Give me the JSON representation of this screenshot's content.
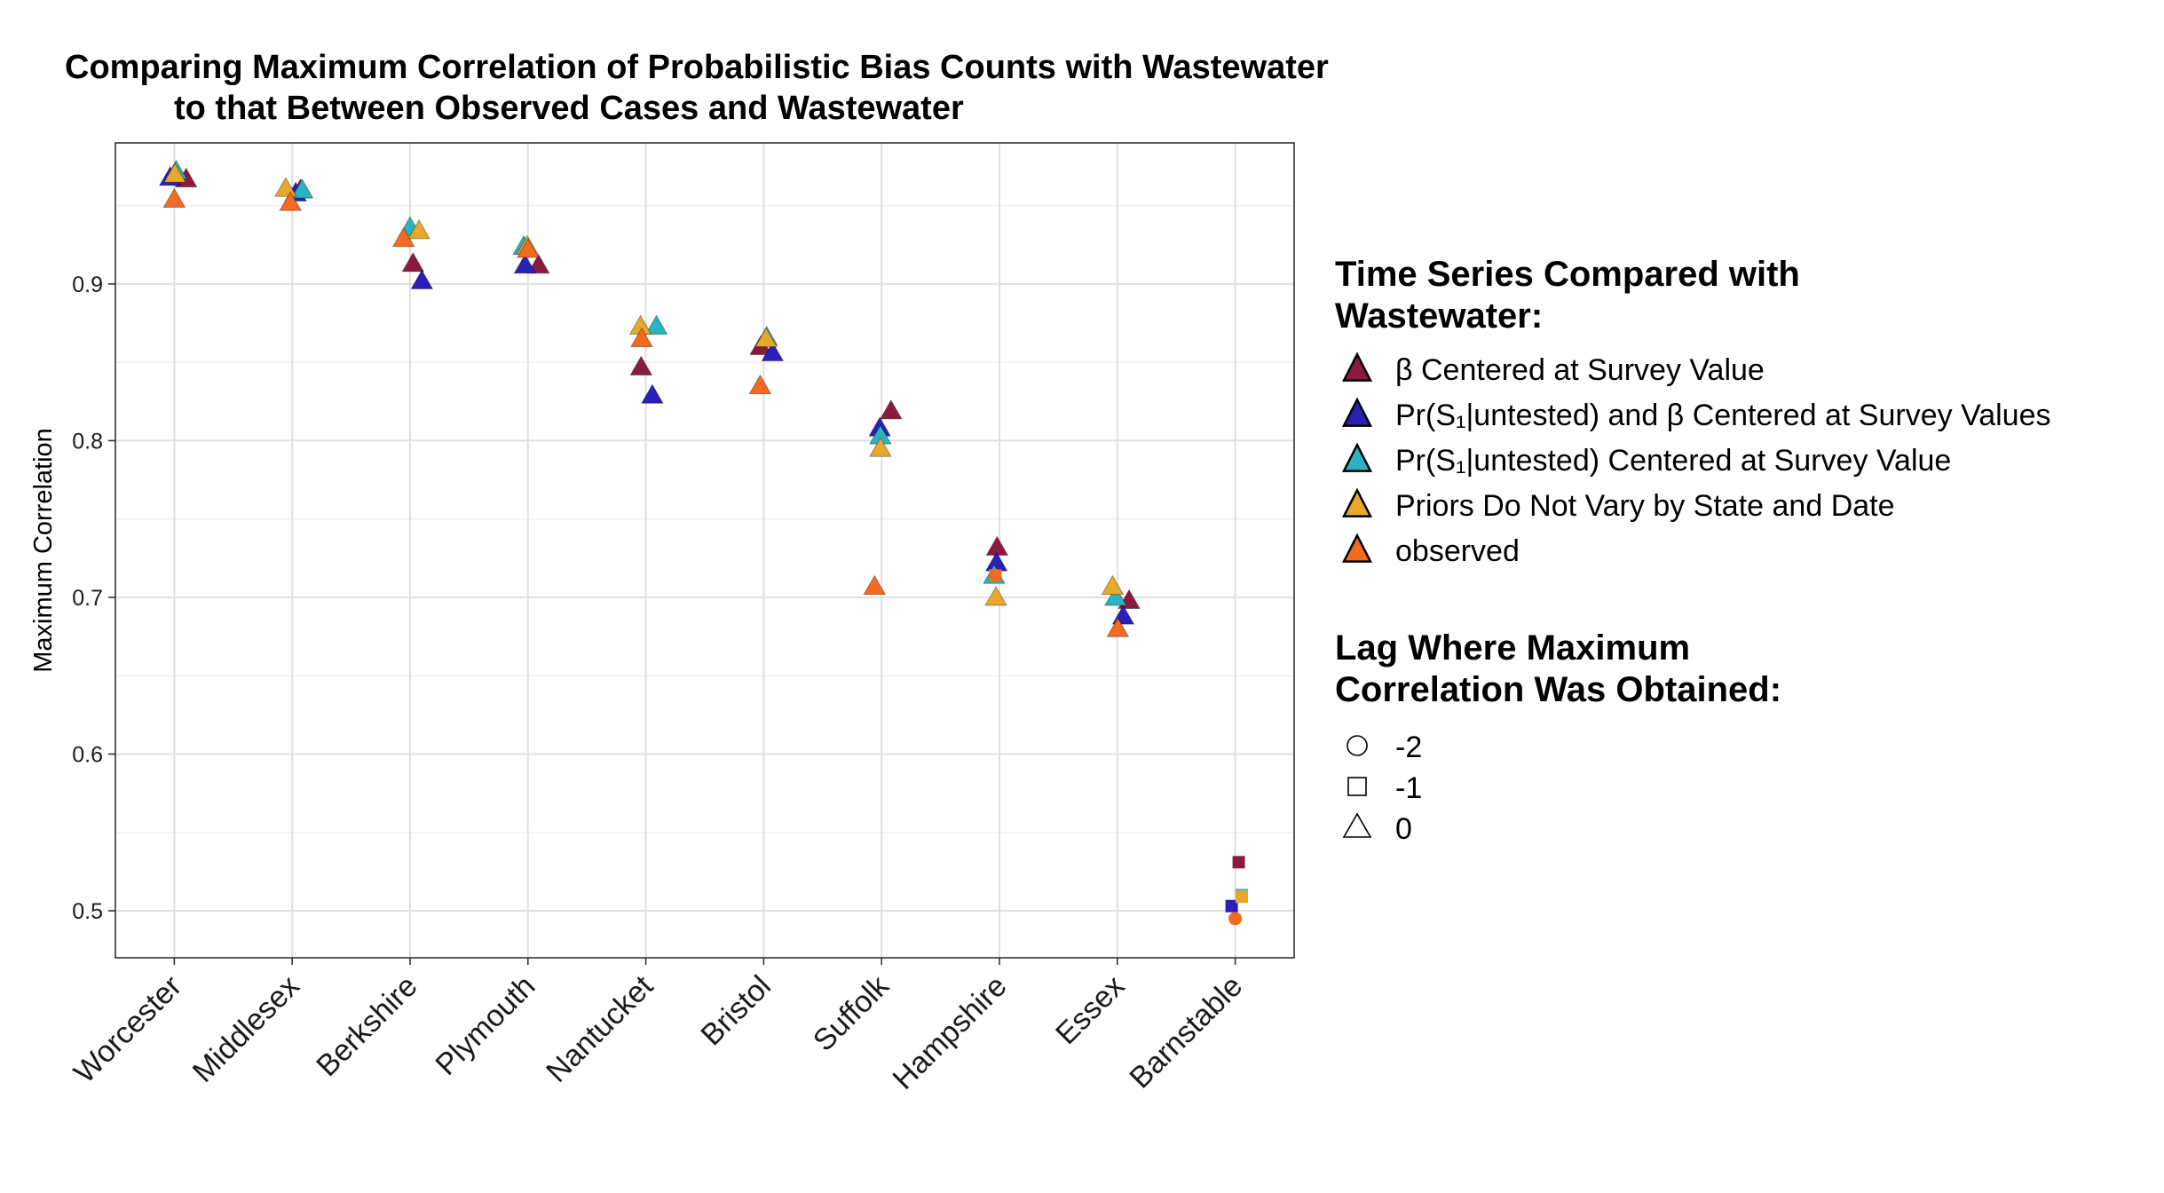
{
  "chart_data": {
    "type": "scatter",
    "title_lines": [
      "Comparing Maximum Correlation of Probabilistic Bias Counts with Wastewater",
      "to that Between Observed Cases and Wastewater"
    ],
    "xlabel": "",
    "ylabel": "Maximum Correlation",
    "ylim": [
      0.47,
      0.99
    ],
    "yticks": [
      "0.5",
      "0.6",
      "0.7",
      "0.8",
      "0.9"
    ],
    "categories": [
      "Worcester",
      "Middlesex",
      "Berkshire",
      "Plymouth",
      "Nantucket",
      "Bristol",
      "Suffolk",
      "Hampshire",
      "Essex",
      "Barnstable"
    ],
    "grid": true,
    "legend_position": "right",
    "color_legend": {
      "title_lines": [
        "Time Series Compared with",
        "Wastewater:"
      ],
      "entries": [
        {
          "label": "β Centered at Survey Value",
          "color": "#8b1a3f"
        },
        {
          "label": "Pr(S₁|untested) and β Centered at Survey Values",
          "color": "#2a1fb8"
        },
        {
          "label": "Pr(S₁|untested) Centered at Survey Value",
          "color": "#2bb3c0"
        },
        {
          "label": "Priors Do Not Vary by State and Date",
          "color": "#e8a82e"
        },
        {
          "label": "observed",
          "color": "#f26b21"
        }
      ]
    },
    "shape_legend": {
      "title_lines": [
        "Lag Where Maximum",
        "Correlation Was Obtained:"
      ],
      "entries": [
        {
          "label": "-2",
          "shape": "circle"
        },
        {
          "label": "-1",
          "shape": "square"
        },
        {
          "label": "0",
          "shape": "triangle"
        }
      ]
    },
    "series": [
      {
        "name": "β Centered at Survey Value",
        "color": "#8b1a3f",
        "values": [
          0.967,
          0.96,
          0.913,
          0.912,
          0.847,
          0.86,
          0.819,
          0.732,
          0.698,
          0.531
        ],
        "lags": [
          0,
          0,
          0,
          0,
          0,
          0,
          0,
          0,
          0,
          -1
        ],
        "jitter": [
          0.2,
          0.14,
          0.05,
          0.18,
          -0.08,
          -0.05,
          0.16,
          -0.04,
          0.2,
          0.06
        ]
      },
      {
        "name": "Pr(S₁|untested) and β Centered at Survey Values",
        "color": "#2a1fb8",
        "values": [
          0.968,
          0.958,
          0.902,
          0.912,
          0.829,
          0.856,
          0.808,
          0.722,
          0.688,
          0.503
        ],
        "lags": [
          0,
          0,
          0,
          0,
          0,
          0,
          0,
          0,
          0,
          -1
        ],
        "jitter": [
          -0.07,
          0.06,
          0.2,
          -0.05,
          0.11,
          0.15,
          -0.03,
          -0.05,
          0.1,
          -0.06
        ]
      },
      {
        "name": "Pr(S₁|untested) Centered at Survey Value",
        "color": "#2bb3c0",
        "values": [
          0.972,
          0.96,
          0.936,
          0.924,
          0.873,
          0.866,
          0.803,
          0.714,
          0.7,
          0.51
        ],
        "lags": [
          0,
          0,
          0,
          0,
          0,
          0,
          0,
          0,
          0,
          -1
        ],
        "jitter": [
          0.03,
          0.17,
          0.0,
          -0.07,
          0.18,
          0.05,
          -0.02,
          -0.09,
          -0.03,
          0.11
        ]
      },
      {
        "name": "Priors Do Not Vary by State and Date",
        "color": "#e8a82e",
        "values": [
          0.97,
          0.961,
          0.934,
          0.924,
          0.873,
          0.865,
          0.795,
          0.7,
          0.707,
          0.509
        ],
        "lags": [
          0,
          0,
          0,
          0,
          0,
          0,
          0,
          0,
          0,
          -1
        ],
        "jitter": [
          0.01,
          -0.11,
          0.15,
          -0.01,
          -0.09,
          0.04,
          -0.02,
          -0.06,
          -0.08,
          0.11
        ]
      },
      {
        "name": "observed",
        "color": "#f26b21",
        "values": [
          0.954,
          0.952,
          0.929,
          0.922,
          0.865,
          0.835,
          0.707,
          0.714,
          0.68,
          0.495
        ],
        "lags": [
          0,
          0,
          0,
          0,
          0,
          0,
          0,
          -1,
          0,
          -2
        ],
        "jitter": [
          0.0,
          -0.03,
          -0.11,
          0.0,
          -0.07,
          -0.06,
          -0.12,
          -0.07,
          0.01,
          0.0
        ]
      }
    ]
  }
}
